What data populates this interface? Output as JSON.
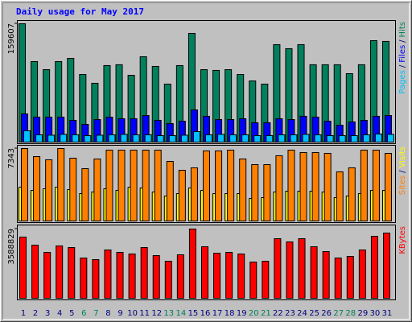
{
  "chart_data": {
    "type": "bar",
    "title": "Daily usage for May 2017",
    "categories": [
      "1",
      "2",
      "3",
      "4",
      "5",
      "6",
      "7",
      "8",
      "9",
      "10",
      "11",
      "12",
      "13",
      "14",
      "15",
      "16",
      "17",
      "18",
      "19",
      "20",
      "21",
      "22",
      "23",
      "24",
      "25",
      "26",
      "27",
      "28",
      "29",
      "30",
      "31"
    ],
    "category_colors": [
      "#000080",
      "#000080",
      "#000080",
      "#000080",
      "#000080",
      "#00805c",
      "#00805c",
      "#000080",
      "#000080",
      "#000080",
      "#000080",
      "#000080",
      "#00805c",
      "#00805c",
      "#000080",
      "#000080",
      "#000080",
      "#000080",
      "#000080",
      "#00805c",
      "#00805c",
      "#000080",
      "#000080",
      "#000080",
      "#000080",
      "#000080",
      "#00805c",
      "#00805c",
      "#000080",
      "#000080",
      "#000080"
    ],
    "separator": "/",
    "panels": [
      {
        "ylim": [
          0,
          159607
        ],
        "yticks": [
          159607
        ],
        "series": [
          {
            "name": "Pages",
            "color": "#00c0ff",
            "values": [
              15200,
              9800,
              9300,
              10400,
              9800,
              8700,
              9300,
              9800,
              10400,
              9800,
              9800,
              8700,
              8700,
              9300,
              14100,
              9800,
              10400,
              9800,
              9800,
              8700,
              8700,
              9800,
              9800,
              10400,
              9800,
              8700,
              8700,
              8700,
              9800,
              10900,
              10400
            ]
          },
          {
            "name": "Files",
            "color": "#0000ff",
            "values": [
              38000,
              33700,
              33700,
              33700,
              29300,
              23900,
              30400,
              33700,
              31500,
              31500,
              35800,
              29300,
              25000,
              28200,
              43400,
              34800,
              30400,
              30400,
              31500,
              26100,
              26100,
              31500,
              30400,
              34800,
              33700,
              28200,
              22800,
              27200,
              29300,
              34800,
              35800
            ]
          },
          {
            "name": "Hits",
            "color": "#00805c",
            "values": [
              159607,
              108600,
              97700,
              108600,
              112900,
              91200,
              79300,
              103200,
              104300,
              90100,
              115100,
              102100,
              78200,
              103200,
              146600,
              97700,
              96700,
              97700,
              91200,
              82500,
              78200,
              131400,
              126000,
              131400,
              104300,
              104300,
              104300,
              92300,
              104300,
              136800,
              135800
            ]
          }
        ]
      },
      {
        "ylim": [
          0,
          7343
        ],
        "yticks": [
          7343
        ],
        "series": [
          {
            "name": "Sites",
            "color": "#ff8000",
            "values": [
              7343,
              6528,
              6202,
              7343,
              6365,
              5304,
              6283,
              7181,
              7181,
              7181,
              7181,
              7181,
              6038,
              5141,
              5386,
              7099,
              7099,
              7181,
              6283,
              5712,
              5712,
              6610,
              7181,
              6936,
              6936,
              6854,
              4978,
              5386,
              7181,
              7181,
              6854
            ]
          },
          {
            "name": "Visits",
            "color": "#ffff00",
            "values": [
              3427,
              3101,
              3264,
              3427,
              3182,
              2774,
              2938,
              3264,
              3101,
              3427,
              3346,
              2938,
              2530,
              2774,
              3346,
              3101,
              2774,
              2774,
              2774,
              2285,
              2366,
              2938,
              3019,
              3019,
              3019,
              2938,
              2366,
              2530,
              2774,
              3101,
              3101
            ]
          }
        ]
      },
      {
        "ylim": [
          0,
          3588829
        ],
        "yticks": [
          3588829
        ],
        "series": [
          {
            "name": "KBytes",
            "color": "#ff0000",
            "values": [
              3171500,
              2754200,
              2378600,
              2712500,
              2629000,
              2086500,
              2003000,
              2503800,
              2378600,
              2295200,
              2629000,
              2211700,
              1919600,
              2253400,
              3588829,
              2670700,
              2336900,
              2378600,
              2295200,
              1877900,
              1919600,
              3088000,
              2921100,
              3088000,
              2670700,
              2420300,
              2086500,
              2170000,
              2503800,
              3213200,
              3380100
            ]
          }
        ]
      }
    ]
  }
}
